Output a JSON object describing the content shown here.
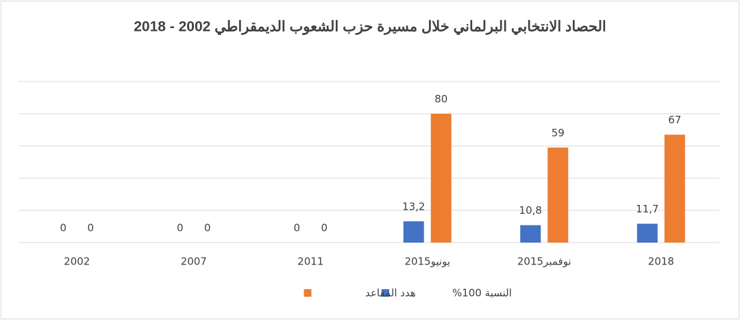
{
  "chart_data": {
    "type": "bar",
    "title": "الحصاد الانتخابي البرلماني خلال مسيرة حزب الشعوب الديمقراطي 2002 - 2018",
    "categories": [
      "2002",
      "2007",
      "2011",
      "يونيو2015",
      "نوفمبر2015",
      "2018"
    ],
    "series": [
      {
        "name": "النسبة 100%",
        "color": "#4472c4",
        "values": [
          0,
          0,
          0,
          13.2,
          10.8,
          11.7
        ],
        "value_labels": [
          "0",
          "0",
          "0",
          "13,2",
          "10,8",
          "11,7"
        ]
      },
      {
        "name": "هدد المقاعد",
        "color": "#ed7d31",
        "values": [
          0,
          0,
          0,
          80,
          59,
          67
        ]
      }
    ],
    "ylim": [
      0,
      100
    ],
    "yticks": [
      0,
      20,
      40,
      60,
      80,
      100
    ],
    "grid": true
  }
}
